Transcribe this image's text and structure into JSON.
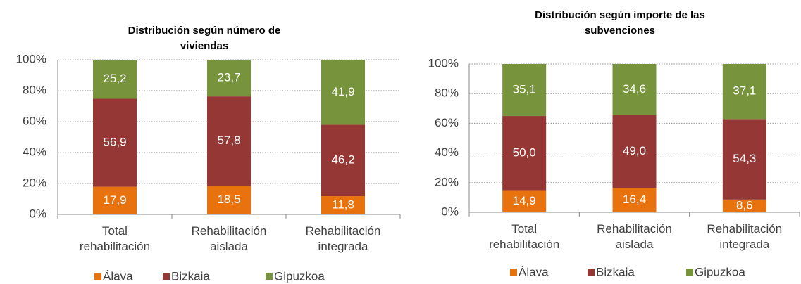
{
  "chart_data": [
    {
      "type": "stacked_bar",
      "title": "Distribución según número de viviendas",
      "categories": [
        "Total rehabilitación",
        "Rehabilitación aislada",
        "Rehabilitación integrada"
      ],
      "series": [
        {
          "name": "Álava",
          "color": "#e8730e",
          "values": [
            17.9,
            18.5,
            11.8
          ],
          "value_labels": [
            "17,9",
            "18,5",
            "11,8"
          ]
        },
        {
          "name": "Bizkaia",
          "color": "#953735",
          "values": [
            56.9,
            57.8,
            46.2
          ],
          "value_labels": [
            "56,9",
            "57,8",
            "46,2"
          ]
        },
        {
          "name": "Gipuzkoa",
          "color": "#77933c",
          "values": [
            25.2,
            23.7,
            41.9
          ],
          "value_labels": [
            "25,2",
            "23,7",
            "41,9"
          ]
        }
      ],
      "ylim": [
        0,
        100
      ],
      "yticks": [
        {
          "value": 0,
          "label": "0%"
        },
        {
          "value": 20,
          "label": "20%"
        },
        {
          "value": 40,
          "label": "40%"
        },
        {
          "value": 60,
          "label": "60%"
        },
        {
          "value": 80,
          "label": "80%"
        },
        {
          "value": 100,
          "label": "100%"
        }
      ],
      "grid": true,
      "legend": "bottom"
    },
    {
      "type": "stacked_bar",
      "title": "Distribución según importe de las subvenciones",
      "categories": [
        "Total rehabilitación",
        "Rehabilitación aislada",
        "Rehabilitación integrada"
      ],
      "series": [
        {
          "name": "Álava",
          "color": "#e8730e",
          "values": [
            14.9,
            16.4,
            8.6
          ],
          "value_labels": [
            "14,9",
            "16,4",
            "8,6"
          ]
        },
        {
          "name": "Bizkaia",
          "color": "#953735",
          "values": [
            50.0,
            49.0,
            54.3
          ],
          "value_labels": [
            "50,0",
            "49,0",
            "54,3"
          ]
        },
        {
          "name": "Gipuzkoa",
          "color": "#77933c",
          "values": [
            35.1,
            34.6,
            37.1
          ],
          "value_labels": [
            "35,1",
            "34,6",
            "37,1"
          ]
        }
      ],
      "ylim": [
        0,
        100
      ],
      "yticks": [
        {
          "value": 0,
          "label": "0%"
        },
        {
          "value": 20,
          "label": "20%"
        },
        {
          "value": 40,
          "label": "40%"
        },
        {
          "value": 60,
          "label": "60%"
        },
        {
          "value": 80,
          "label": "80%"
        },
        {
          "value": 100,
          "label": "100%"
        }
      ],
      "grid": true,
      "legend": "bottom"
    }
  ]
}
